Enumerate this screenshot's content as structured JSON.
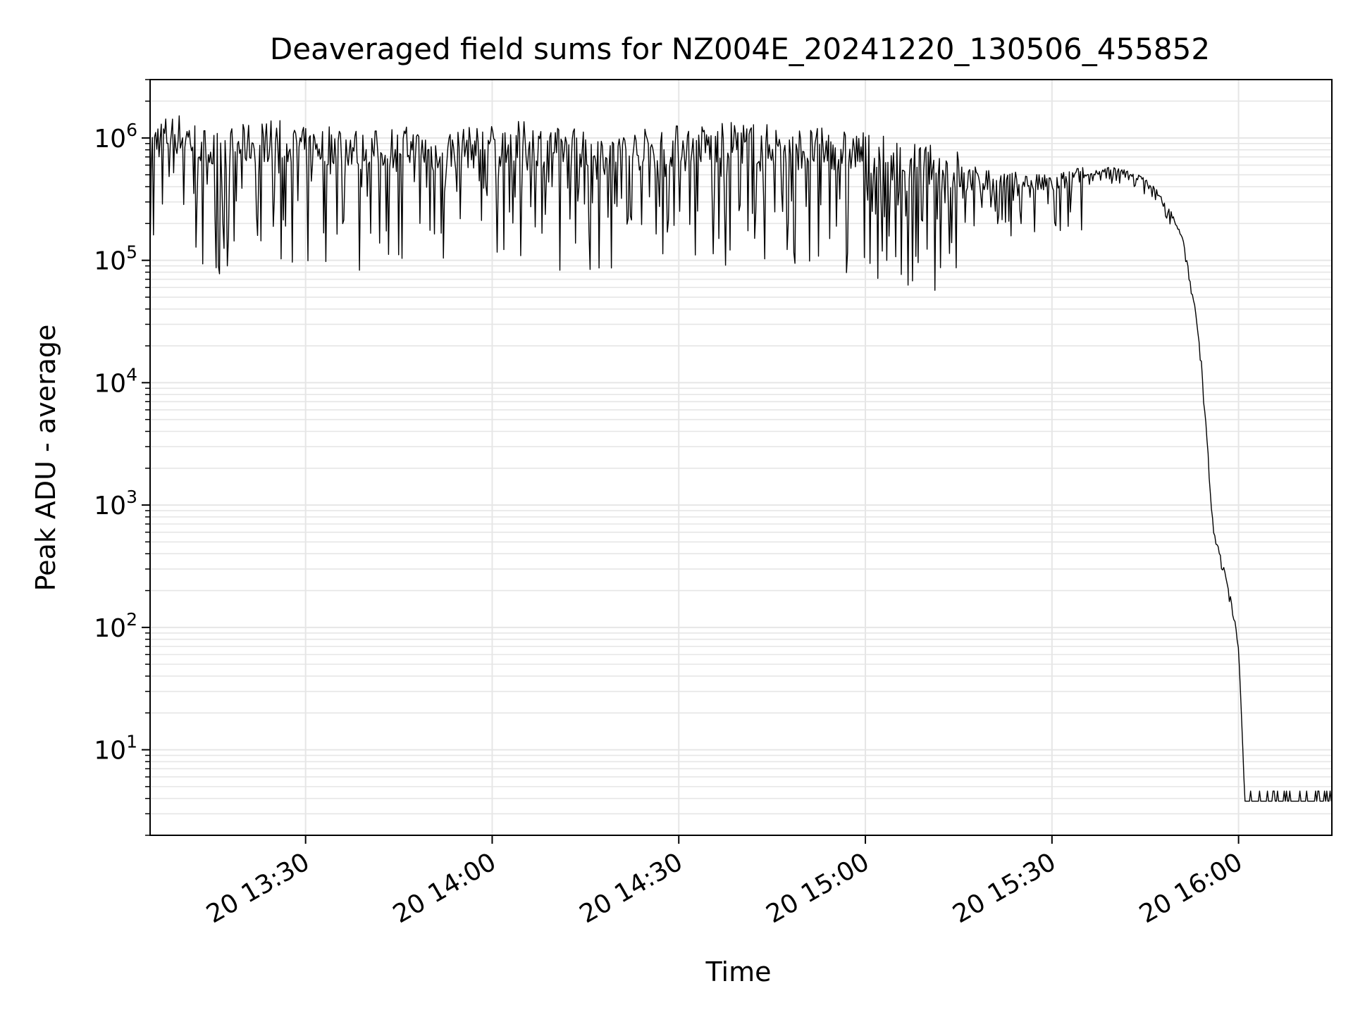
{
  "chart_data": {
    "type": "line",
    "title": "Deaveraged field sums for NZ004E_20241220_130506_455852",
    "xlabel": "Time",
    "ylabel": "Peak ADU - average",
    "yscale": "log",
    "xlim": [
      "20 13:05",
      "20 16:15"
    ],
    "ylim": [
      2,
      3000000
    ],
    "grid": "on (major and minor)",
    "x_ticks": [
      "20 13:30",
      "20 14:00",
      "20 14:30",
      "20 15:00",
      "20 15:30",
      "20 16:00"
    ],
    "y_ticks": [
      {
        "base": "10",
        "exp": "1",
        "value": 10
      },
      {
        "base": "10",
        "exp": "2",
        "value": 100
      },
      {
        "base": "10",
        "exp": "3",
        "value": 1000
      },
      {
        "base": "10",
        "exp": "4",
        "value": 10000
      },
      {
        "base": "10",
        "exp": "5",
        "value": 100000
      },
      {
        "base": "10",
        "exp": "6",
        "value": 1000000
      }
    ],
    "line_color": "#000000",
    "grid_color": "#e6e6e6",
    "series": [
      {
        "x": [
          "20 13:05",
          "20 13:10",
          "20 13:15",
          "20 13:20",
          "20 13:25",
          "20 13:30",
          "20 13:35",
          "20 13:40",
          "20 13:45",
          "20 13:50",
          "20 13:55",
          "20 14:00",
          "20 14:05",
          "20 14:10",
          "20 14:15",
          "20 14:20",
          "20 14:25",
          "20 14:30",
          "20 14:35",
          "20 14:40",
          "20 14:45",
          "20 14:50",
          "20 14:55",
          "20 15:00",
          "20 15:05",
          "20 15:10",
          "20 15:15",
          "20 15:20",
          "20 15:25",
          "20 15:30",
          "20 15:33",
          "20 15:36",
          "20 15:39",
          "20 15:42",
          "20 15:45",
          "20 15:47",
          "20 15:49",
          "20 15:51",
          "20 15:52",
          "20 15:53",
          "20 15:54",
          "20 15:55",
          "20 15:56",
          "20 15:57",
          "20 15:58",
          "20 15:59",
          "20 16:00",
          "20 16:01",
          "20 16:02",
          "20 16:05",
          "20 16:10",
          "20 16:15"
        ],
        "y": [
          900000,
          1000000,
          700000,
          800000,
          900000,
          750000,
          850000,
          700000,
          800000,
          700000,
          750000,
          800000,
          850000,
          750000,
          800000,
          700000,
          750000,
          800000,
          800000,
          850000,
          800000,
          750000,
          750000,
          700000,
          600000,
          550000,
          500000,
          450000,
          420000,
          400000,
          450000,
          500000,
          550000,
          520000,
          450000,
          350000,
          250000,
          150000,
          80000,
          40000,
          15000,
          3000,
          600,
          400,
          250,
          150,
          70,
          4,
          4,
          4,
          4,
          4
        ]
      }
    ],
    "noise_note_hidden": ""
  }
}
